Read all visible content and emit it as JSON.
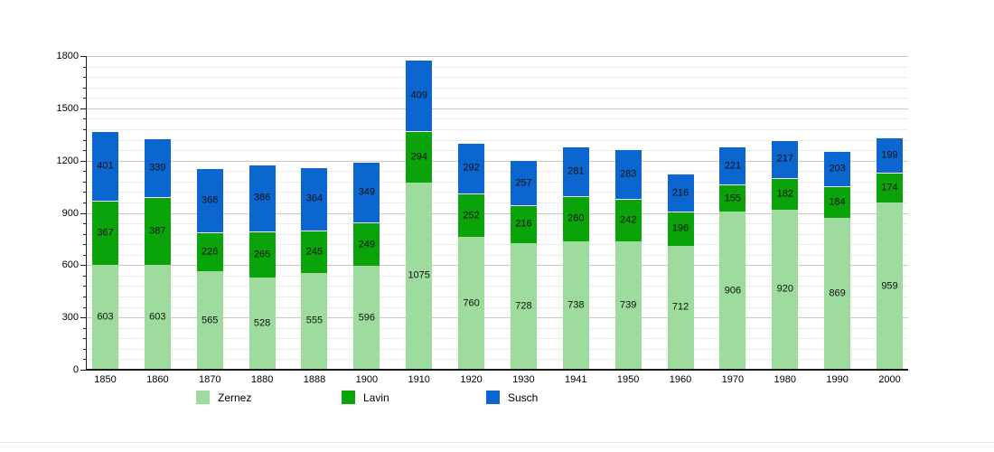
{
  "chart_data": {
    "type": "bar",
    "stacked": true,
    "title": "",
    "xlabel": "",
    "ylabel": "",
    "grid": true,
    "legend_position": "bottom",
    "categories": [
      "1850",
      "1860",
      "1870",
      "1880",
      "1888",
      "1900",
      "1910",
      "1920",
      "1930",
      "1941",
      "1950",
      "1960",
      "1970",
      "1980",
      "1990",
      "2000"
    ],
    "series": [
      {
        "name": "Zernez",
        "color": "#9ddc9d",
        "values": [
          603,
          603,
          565,
          528,
          555,
          596,
          1075,
          760,
          728,
          738,
          739,
          712,
          906,
          920,
          869,
          959
        ]
      },
      {
        "name": "Lavin",
        "color": "#0aa30a",
        "values": [
          367,
          387,
          226,
          265,
          245,
          249,
          294,
          252,
          216,
          260,
          242,
          196,
          155,
          182,
          184,
          174
        ]
      },
      {
        "name": "Susch",
        "color": "#0b66cf",
        "values": [
          401,
          339,
          368,
          386,
          364,
          349,
          409,
          292,
          257,
          281,
          283,
          216,
          221,
          217,
          203,
          199
        ]
      }
    ],
    "ylim": [
      0,
      1800
    ],
    "y_major_tick_labels": [
      "0",
      "300",
      "600",
      "900",
      "1200",
      "1500",
      "1800"
    ],
    "y_major_step": 300,
    "y_minor_step": 60,
    "segment_label_color": "#0f0f0f",
    "axis_color": "#1a1a1a"
  }
}
